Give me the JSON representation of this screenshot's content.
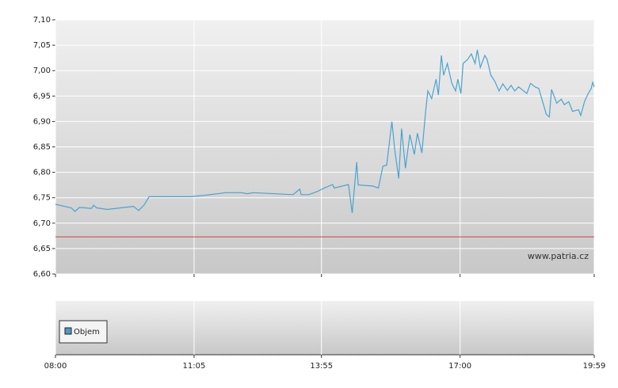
{
  "chart_data": {
    "type": "line",
    "watermark": "www.patria.cz",
    "legend": "Objem",
    "legend_color": "#4a9cc9",
    "color": "#4aa3cf",
    "grid": true,
    "reference_line": {
      "value": 6.673,
      "color": "#cc4444"
    },
    "xlim": [
      "08:00",
      "19:59"
    ],
    "xticks": [
      "08:00",
      "11:05",
      "13:55",
      "17:00",
      "19:59"
    ],
    "ylim": [
      6.6,
      7.1
    ],
    "yticks": [
      {
        "value": 6.6,
        "label": "6,60"
      },
      {
        "value": 6.65,
        "label": "6,65"
      },
      {
        "value": 6.7,
        "label": "6,70"
      },
      {
        "value": 6.75,
        "label": "6,75"
      },
      {
        "value": 6.8,
        "label": "6,80"
      },
      {
        "value": 6.85,
        "label": "6,85"
      },
      {
        "value": 6.9,
        "label": "6,90"
      },
      {
        "value": 6.95,
        "label": "6,95"
      },
      {
        "value": 7.0,
        "label": "7,00"
      },
      {
        "value": 7.05,
        "label": "7,05"
      },
      {
        "value": 7.1,
        "label": "7,10"
      }
    ],
    "x": [
      "08:00",
      "08:21",
      "08:26",
      "08:32",
      "08:48",
      "08:51",
      "08:55",
      "09:09",
      "09:44",
      "09:51",
      "09:58",
      "10:05",
      "11:00",
      "11:21",
      "11:47",
      "12:08",
      "12:16",
      "12:24",
      "13:17",
      "13:22",
      "13:26",
      "13:28",
      "13:38",
      "13:49",
      "14:00",
      "14:10",
      "14:12",
      "14:31",
      "14:36",
      "14:42",
      "14:44",
      "15:03",
      "15:11",
      "15:17",
      "15:22",
      "15:29",
      "15:33",
      "15:38",
      "15:42",
      "15:47",
      "15:53",
      "15:59",
      "16:03",
      "16:09",
      "16:14",
      "16:17",
      "16:22",
      "16:28",
      "16:31",
      "16:35",
      "16:38",
      "16:43",
      "16:49",
      "16:54",
      "16:57",
      "17:01",
      "17:04",
      "17:10",
      "17:15",
      "17:20",
      "17:23",
      "17:27",
      "17:33",
      "17:36",
      "17:41",
      "17:46",
      "17:52",
      "17:57",
      "18:03",
      "18:08",
      "18:13",
      "18:18",
      "18:29",
      "18:34",
      "18:40",
      "18:45",
      "18:55",
      "18:59",
      "19:02",
      "19:09",
      "19:15",
      "19:19",
      "19:25",
      "19:30",
      "19:38",
      "19:41",
      "19:46",
      "19:51",
      "19:55",
      "19:57",
      "19:59"
    ],
    "values": [
      6.737,
      6.73,
      6.723,
      6.731,
      6.729,
      6.735,
      6.73,
      6.727,
      6.733,
      6.725,
      6.735,
      6.752,
      6.752,
      6.755,
      6.76,
      6.76,
      6.758,
      6.76,
      6.756,
      6.762,
      6.767,
      6.756,
      6.756,
      6.762,
      6.77,
      6.776,
      6.769,
      6.776,
      6.72,
      6.82,
      6.775,
      6.773,
      6.769,
      6.812,
      6.814,
      6.9,
      6.842,
      6.788,
      6.886,
      6.808,
      6.874,
      6.835,
      6.877,
      6.838,
      6.92,
      6.96,
      6.945,
      6.983,
      6.952,
      7.03,
      6.991,
      7.014,
      6.975,
      6.96,
      6.983,
      6.955,
      7.014,
      7.022,
      7.033,
      7.014,
      7.041,
      7.006,
      7.03,
      7.022,
      6.991,
      6.98,
      6.96,
      6.974,
      6.961,
      6.971,
      6.96,
      6.968,
      6.955,
      6.975,
      6.968,
      6.965,
      6.914,
      6.909,
      6.963,
      6.936,
      6.944,
      6.933,
      6.939,
      6.92,
      6.923,
      6.912,
      6.939,
      6.955,
      6.965,
      6.977,
      6.968
    ]
  }
}
